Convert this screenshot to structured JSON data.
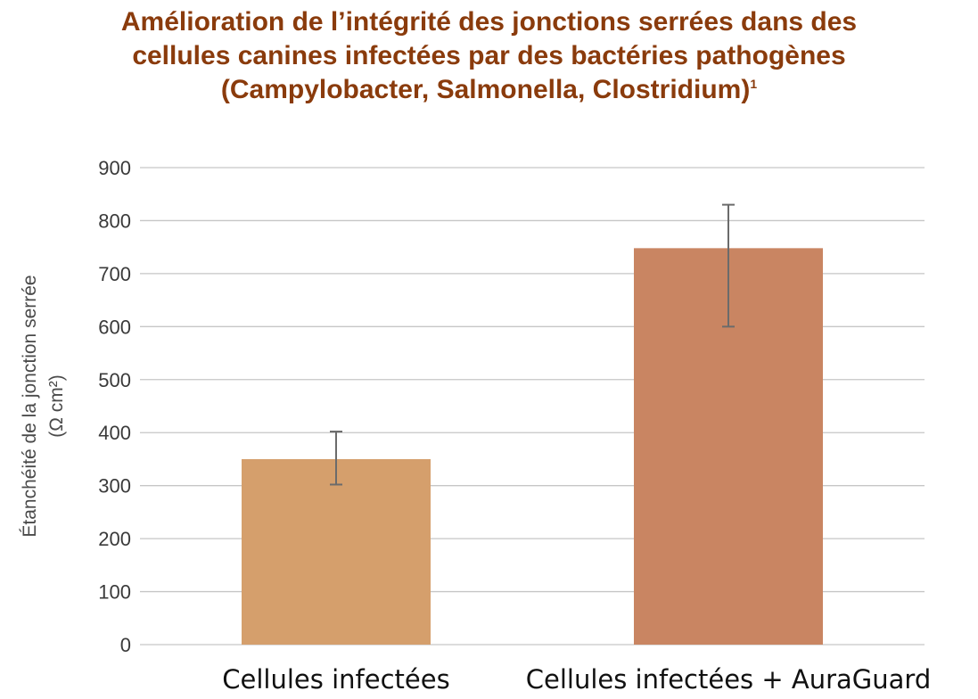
{
  "title": {
    "line1": "Amélioration de l’intégrité des jonctions serrées dans des",
    "line2": "cellules canines infectées par des bactéries pathogènes",
    "line3": "(Campylobacter, Salmonella, Clostridium)",
    "footnote": "1"
  },
  "chart_data": {
    "type": "bar",
    "categories": [
      "Cellules infectées",
      "Cellules infectées + AuraGuard"
    ],
    "values": [
      350,
      748
    ],
    "error_bars": [
      {
        "low": 302,
        "high": 402
      },
      {
        "low": 600,
        "high": 830
      }
    ],
    "colors": [
      "#d59f6c",
      "#c98562"
    ],
    "ylabel": [
      "Étanchéité de la jonction serrée",
      "(Ω cm²)"
    ],
    "ylim": [
      0,
      900
    ],
    "yticks": [
      0,
      100,
      200,
      300,
      400,
      500,
      600,
      700,
      800,
      900
    ],
    "grid": true,
    "legend": "none"
  }
}
